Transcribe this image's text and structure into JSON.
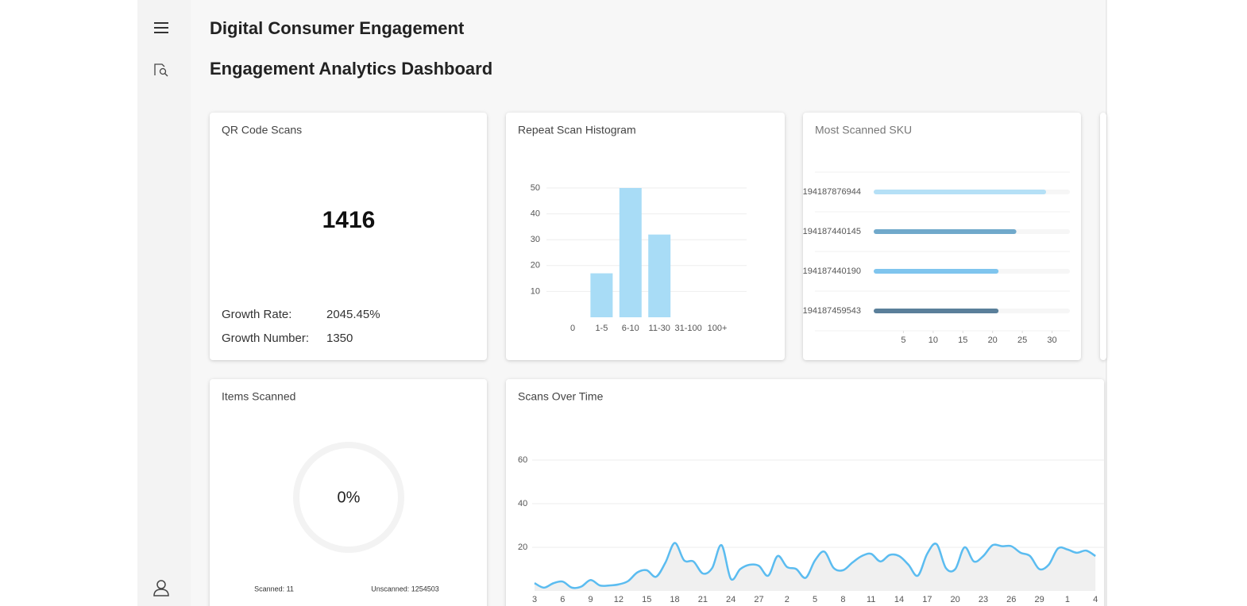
{
  "header": {
    "app_title": "Digital Consumer Engagement",
    "page_title": "Engagement Analytics Dashboard"
  },
  "qr_scans": {
    "title": "QR Code Scans",
    "total": 1416,
    "growth_rate_label": "Growth Rate:",
    "growth_rate": "2045.45%",
    "growth_number_label": "Growth Number:",
    "growth_number": 1350
  },
  "items_scanned": {
    "title": "Items Scanned",
    "value": 0,
    "value_label": "0%",
    "scanned": "Scanned: 11",
    "unscanned": "Unscanned: 1254503"
  },
  "chart_data": [
    {
      "type": "bar",
      "title": "Repeat Scan Histogram",
      "categories": [
        "0",
        "1-5",
        "6-10",
        "11-30",
        "31-100",
        "100+"
      ],
      "values": [
        0,
        17,
        50,
        32,
        0,
        0
      ],
      "color": "#a8dcf6",
      "ylim": [
        0,
        50
      ],
      "yticks": [
        10,
        20,
        30,
        40,
        50
      ],
      "grid": true
    },
    {
      "type": "hbar",
      "title": "Most Scanned SKU",
      "categories": [
        "194187876944",
        "194187440145",
        "194187440190",
        "194187459543"
      ],
      "values": [
        29,
        24,
        21,
        21
      ],
      "colors": [
        "#b5e0f6",
        "#70a9cb",
        "#7fc5ee",
        "#5a7f9a"
      ],
      "xlim": [
        0,
        33
      ],
      "xticks": [
        5,
        10,
        15,
        20,
        25,
        30
      ],
      "grid": true
    },
    {
      "type": "line",
      "title": "Scans Over Time",
      "color": "#5bbcf0",
      "categories": [
        "3",
        null,
        null,
        "6",
        null,
        null,
        "9",
        null,
        null,
        "12",
        null,
        null,
        "15",
        null,
        null,
        "18",
        null,
        null,
        "21",
        null,
        null,
        "24",
        null,
        null,
        "27",
        null,
        null,
        "2",
        null,
        null,
        "5",
        null,
        null,
        "8",
        null,
        null,
        "11",
        null,
        null,
        "14",
        null,
        null,
        "17",
        null,
        null,
        "20",
        null,
        null,
        "23",
        null,
        null,
        "26",
        null,
        null,
        "29",
        null,
        null,
        "1",
        null,
        null,
        "4"
      ],
      "values": [
        3.6,
        1.5,
        3.5,
        4.3,
        1.5,
        2,
        5,
        2.5,
        2.5,
        3,
        4.5,
        8.5,
        9.5,
        6.5,
        13,
        22,
        14,
        13.5,
        8,
        10.5,
        21,
        5.5,
        10,
        12,
        11.5,
        7,
        16,
        11,
        10,
        6,
        14,
        18,
        10.5,
        9.5,
        13,
        16,
        17,
        13.5,
        16.5,
        16,
        12,
        7,
        17,
        21.5,
        10.5,
        10,
        20,
        13.5,
        16,
        21,
        20.5,
        20.5,
        17.5,
        16,
        10,
        12,
        19.5,
        19,
        17.5,
        18.5,
        16
      ],
      "ylim": [
        0,
        60
      ],
      "yticks": [
        20,
        40,
        60
      ],
      "grid": true
    }
  ]
}
